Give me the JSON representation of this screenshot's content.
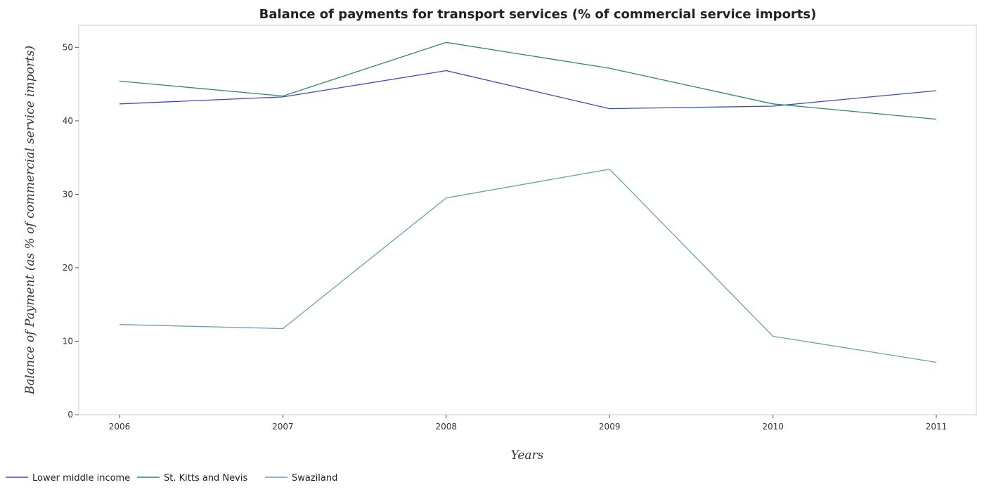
{
  "chart_data": {
    "type": "line",
    "title": "Balance of payments for transport services (% of commercial service imports)",
    "xlabel": "Years",
    "ylabel": "Balance of Payment (as % of commercial service imports)",
    "categories": [
      "2006",
      "2007",
      "2008",
      "2009",
      "2010",
      "2011"
    ],
    "ylim": [
      0,
      53
    ],
    "yticks": [
      0,
      10,
      20,
      30,
      40,
      50
    ],
    "grid": false,
    "legend_position": "bottom-left",
    "series": [
      {
        "name": "Lower middle income",
        "color": "#3a4cc0",
        "values": [
          42.3,
          43.25,
          46.83,
          41.65,
          42.0,
          44.1
        ]
      },
      {
        "name": "St. Kitts and Nevis",
        "color": "#2e8b57",
        "values": [
          45.4,
          43.38,
          50.68,
          47.15,
          42.3,
          40.22
        ]
      },
      {
        "name": "Swaziland",
        "color": "#6a9fb5",
        "values": [
          12.27,
          11.72,
          29.5,
          33.42,
          10.68,
          7.13
        ]
      }
    ]
  }
}
